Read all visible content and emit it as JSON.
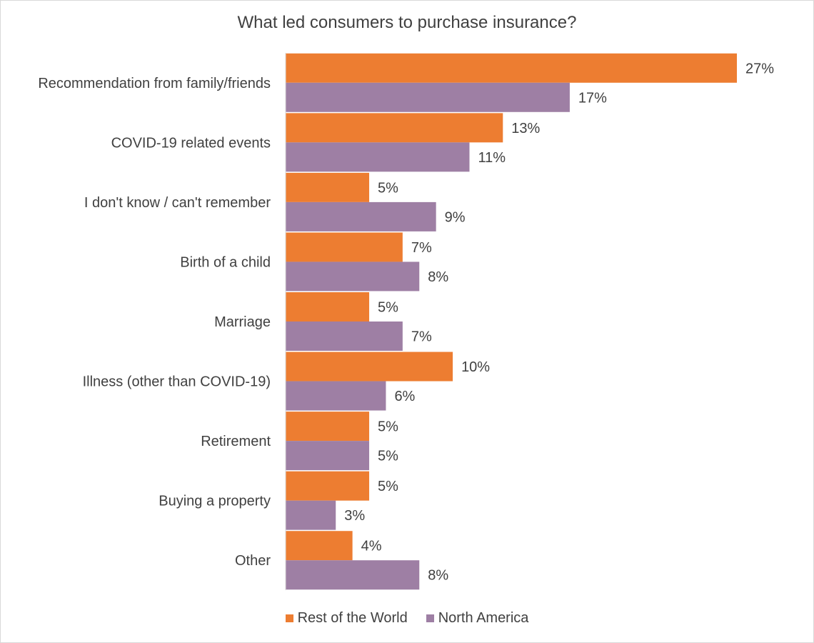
{
  "chart_data": {
    "type": "bar",
    "orientation": "horizontal",
    "title": "What led consumers to purchase insurance?",
    "categories": [
      "Recommendation from family/friends",
      "COVID-19 related events",
      "I don't know / can't remember",
      "Birth of a child",
      "Marriage",
      "Illness (other than COVID-19)",
      "Retirement",
      "Buying a property",
      "Other"
    ],
    "series": [
      {
        "name": "Rest of the World",
        "color": "#ED7D31",
        "values": [
          27,
          13,
          5,
          7,
          5,
          10,
          5,
          5,
          4
        ],
        "labels": [
          "27%",
          "13%",
          "5%",
          "7%",
          "5%",
          "10%",
          "5%",
          "5%",
          "4%"
        ]
      },
      {
        "name": "North America",
        "color": "#9E7FA4",
        "values": [
          17,
          11,
          9,
          8,
          7,
          6,
          5,
          3,
          8
        ],
        "labels": [
          "17%",
          "11%",
          "9%",
          "8%",
          "7%",
          "6%",
          "5%",
          "3%",
          "8%"
        ]
      }
    ],
    "legend_position": "bottom",
    "grid": false
  }
}
